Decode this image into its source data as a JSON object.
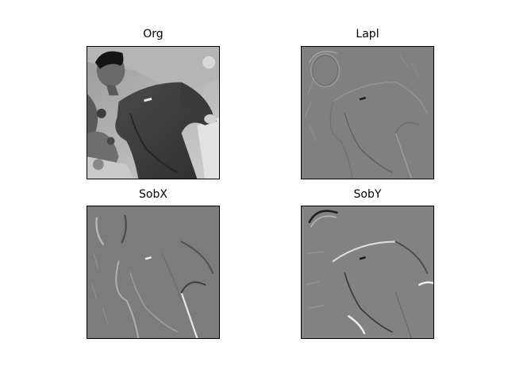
{
  "figure": {
    "background": "#ffffff",
    "panels": [
      {
        "key": "org",
        "title": "Org",
        "kind": "grayscale-photo"
      },
      {
        "key": "lapl",
        "title": "Lapl",
        "kind": "laplacian-edges"
      },
      {
        "key": "sobx",
        "title": "SobX",
        "kind": "sobel-x-edges"
      },
      {
        "key": "soby",
        "title": "SobY",
        "kind": "sobel-y-edges"
      }
    ],
    "colors": {
      "edge_gray": "#808080",
      "highlight": "#f2f2f2",
      "shadow": "#1e1e1e",
      "frame": "#000000"
    }
  }
}
